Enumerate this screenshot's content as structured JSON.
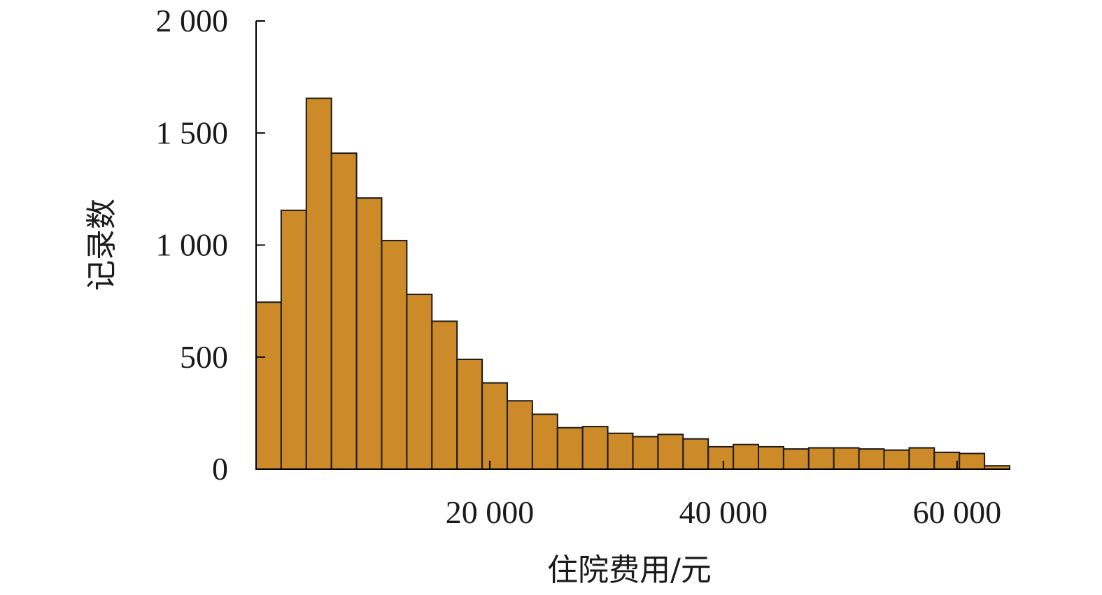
{
  "chart_data": {
    "type": "bar",
    "subtype": "histogram",
    "title": "",
    "xlabel": "住院费用/元",
    "ylabel": "记录数",
    "bar_color": "#CC8A28",
    "edge_color": "#1A1A1A",
    "xlim": [
      0,
      64500
    ],
    "ylim": [
      0,
      2000
    ],
    "x_ticks": [
      {
        "value": 20000,
        "label": "20 000"
      },
      {
        "value": 40000,
        "label": "40 000"
      },
      {
        "value": 60000,
        "label": "60 000"
      }
    ],
    "y_ticks": [
      {
        "value": 0,
        "label": "0"
      },
      {
        "value": 500,
        "label": "500"
      },
      {
        "value": 1000,
        "label": "1 000"
      },
      {
        "value": 1500,
        "label": "1 500"
      },
      {
        "value": 2000,
        "label": "2 000"
      }
    ],
    "bin_width": 2150,
    "bin_start": 0,
    "values": [
      745,
      1155,
      1655,
      1410,
      1210,
      1020,
      780,
      660,
      490,
      385,
      305,
      245,
      185,
      190,
      160,
      145,
      155,
      135,
      100,
      110,
      100,
      90,
      95,
      95,
      90,
      85,
      95,
      75,
      70,
      15
    ],
    "grid": false,
    "legend": "none"
  }
}
